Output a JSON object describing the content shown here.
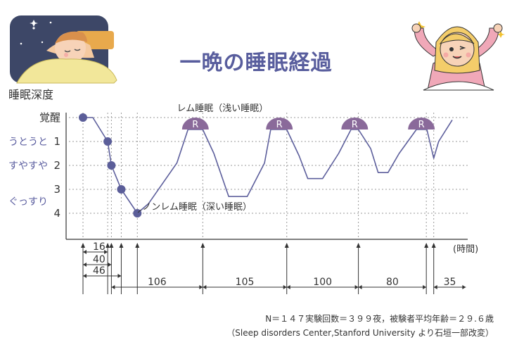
{
  "title": "一晩の睡眠経過",
  "footnotes": [
    "N＝１４７実験回数＝３９９夜，被験者平均年齢＝２９.６歳",
    "（Sleep disorders Center,Stanford University より石垣一部改変）"
  ],
  "colors": {
    "title": "#585d9d",
    "curve": "#5d5f9c",
    "dot": "#5b5e99",
    "rem_cap": "#8a6a9a",
    "side_label": "#5a5d9f",
    "axis": "#333333",
    "grid": "#999999"
  },
  "illustrations": {
    "left": "sleeping-girl-illustration",
    "right": "waking-girl-illustration"
  },
  "chart_data": {
    "type": "line",
    "ylabel": "睡眠深度",
    "xlabel": "",
    "x_unit_label": "(時間)",
    "y_levels": [
      "覚醒",
      "1",
      "2",
      "3",
      "4"
    ],
    "side_labels": [
      {
        "text": "うとうと",
        "stage": 1
      },
      {
        "text": "すやすや",
        "stage": 2
      },
      {
        "text": "ぐっすり",
        "stage": 3.5
      }
    ],
    "series": [
      {
        "points": [
          [
            0,
            0
          ],
          [
            16,
            0
          ],
          [
            40,
            1
          ],
          [
            46,
            2
          ],
          [
            62,
            3
          ],
          [
            88,
            4
          ],
          [
            106,
            3.6
          ],
          [
            152,
            1.9
          ],
          [
            170,
            0.5
          ],
          [
            194,
            0.5
          ],
          [
            212,
            1.5
          ],
          [
            236,
            3.3
          ],
          [
            266,
            3.3
          ],
          [
            294,
            1.9
          ],
          [
            304,
            0.5
          ],
          [
            330,
            0.5
          ],
          [
            350,
            1.6
          ],
          [
            364,
            2.55
          ],
          [
            388,
            2.55
          ],
          [
            414,
            1.5
          ],
          [
            434,
            0.5
          ],
          [
            446,
            0.5
          ],
          [
            466,
            1.3
          ],
          [
            478,
            2.3
          ],
          [
            494,
            2.3
          ],
          [
            512,
            1.5
          ],
          [
            540,
            0.5
          ],
          [
            557,
            0.5
          ],
          [
            568,
            1.7
          ],
          [
            576,
            1.0
          ],
          [
            598,
            0.1
          ]
        ]
      }
    ],
    "dots": [
      [
        0,
        0
      ],
      [
        40,
        1
      ],
      [
        46,
        2
      ],
      [
        62,
        3
      ],
      [
        88,
        4
      ]
    ],
    "rem_periods": [
      {
        "label": "R",
        "x_center": 182
      },
      {
        "label": "R",
        "x_center": 318
      },
      {
        "label": "R",
        "x_center": 440
      },
      {
        "label": "R",
        "x_center": 548
      }
    ],
    "annotations": {
      "rem": "レム睡眠（浅い睡眠）",
      "nrem": "ノンレム睡眠（深い睡眠）"
    },
    "ticks": [
      0,
      40,
      46,
      62,
      88,
      194,
      330,
      446,
      556,
      568
    ],
    "interval_labels": [
      {
        "label": "16",
        "from": 0,
        "to": 40
      },
      {
        "label": "40",
        "from": 0,
        "to": 46
      },
      {
        "label": "46",
        "from": 0,
        "to": 62
      },
      {
        "label": "106",
        "from": 46,
        "to": 194
      },
      {
        "label": "105",
        "from": 194,
        "to": 330
      },
      {
        "label": "100",
        "from": 330,
        "to": 446
      },
      {
        "label": "80",
        "from": 446,
        "to": 556
      },
      {
        "label": "35",
        "from": 568,
        "to": 620
      }
    ],
    "grid": true
  }
}
